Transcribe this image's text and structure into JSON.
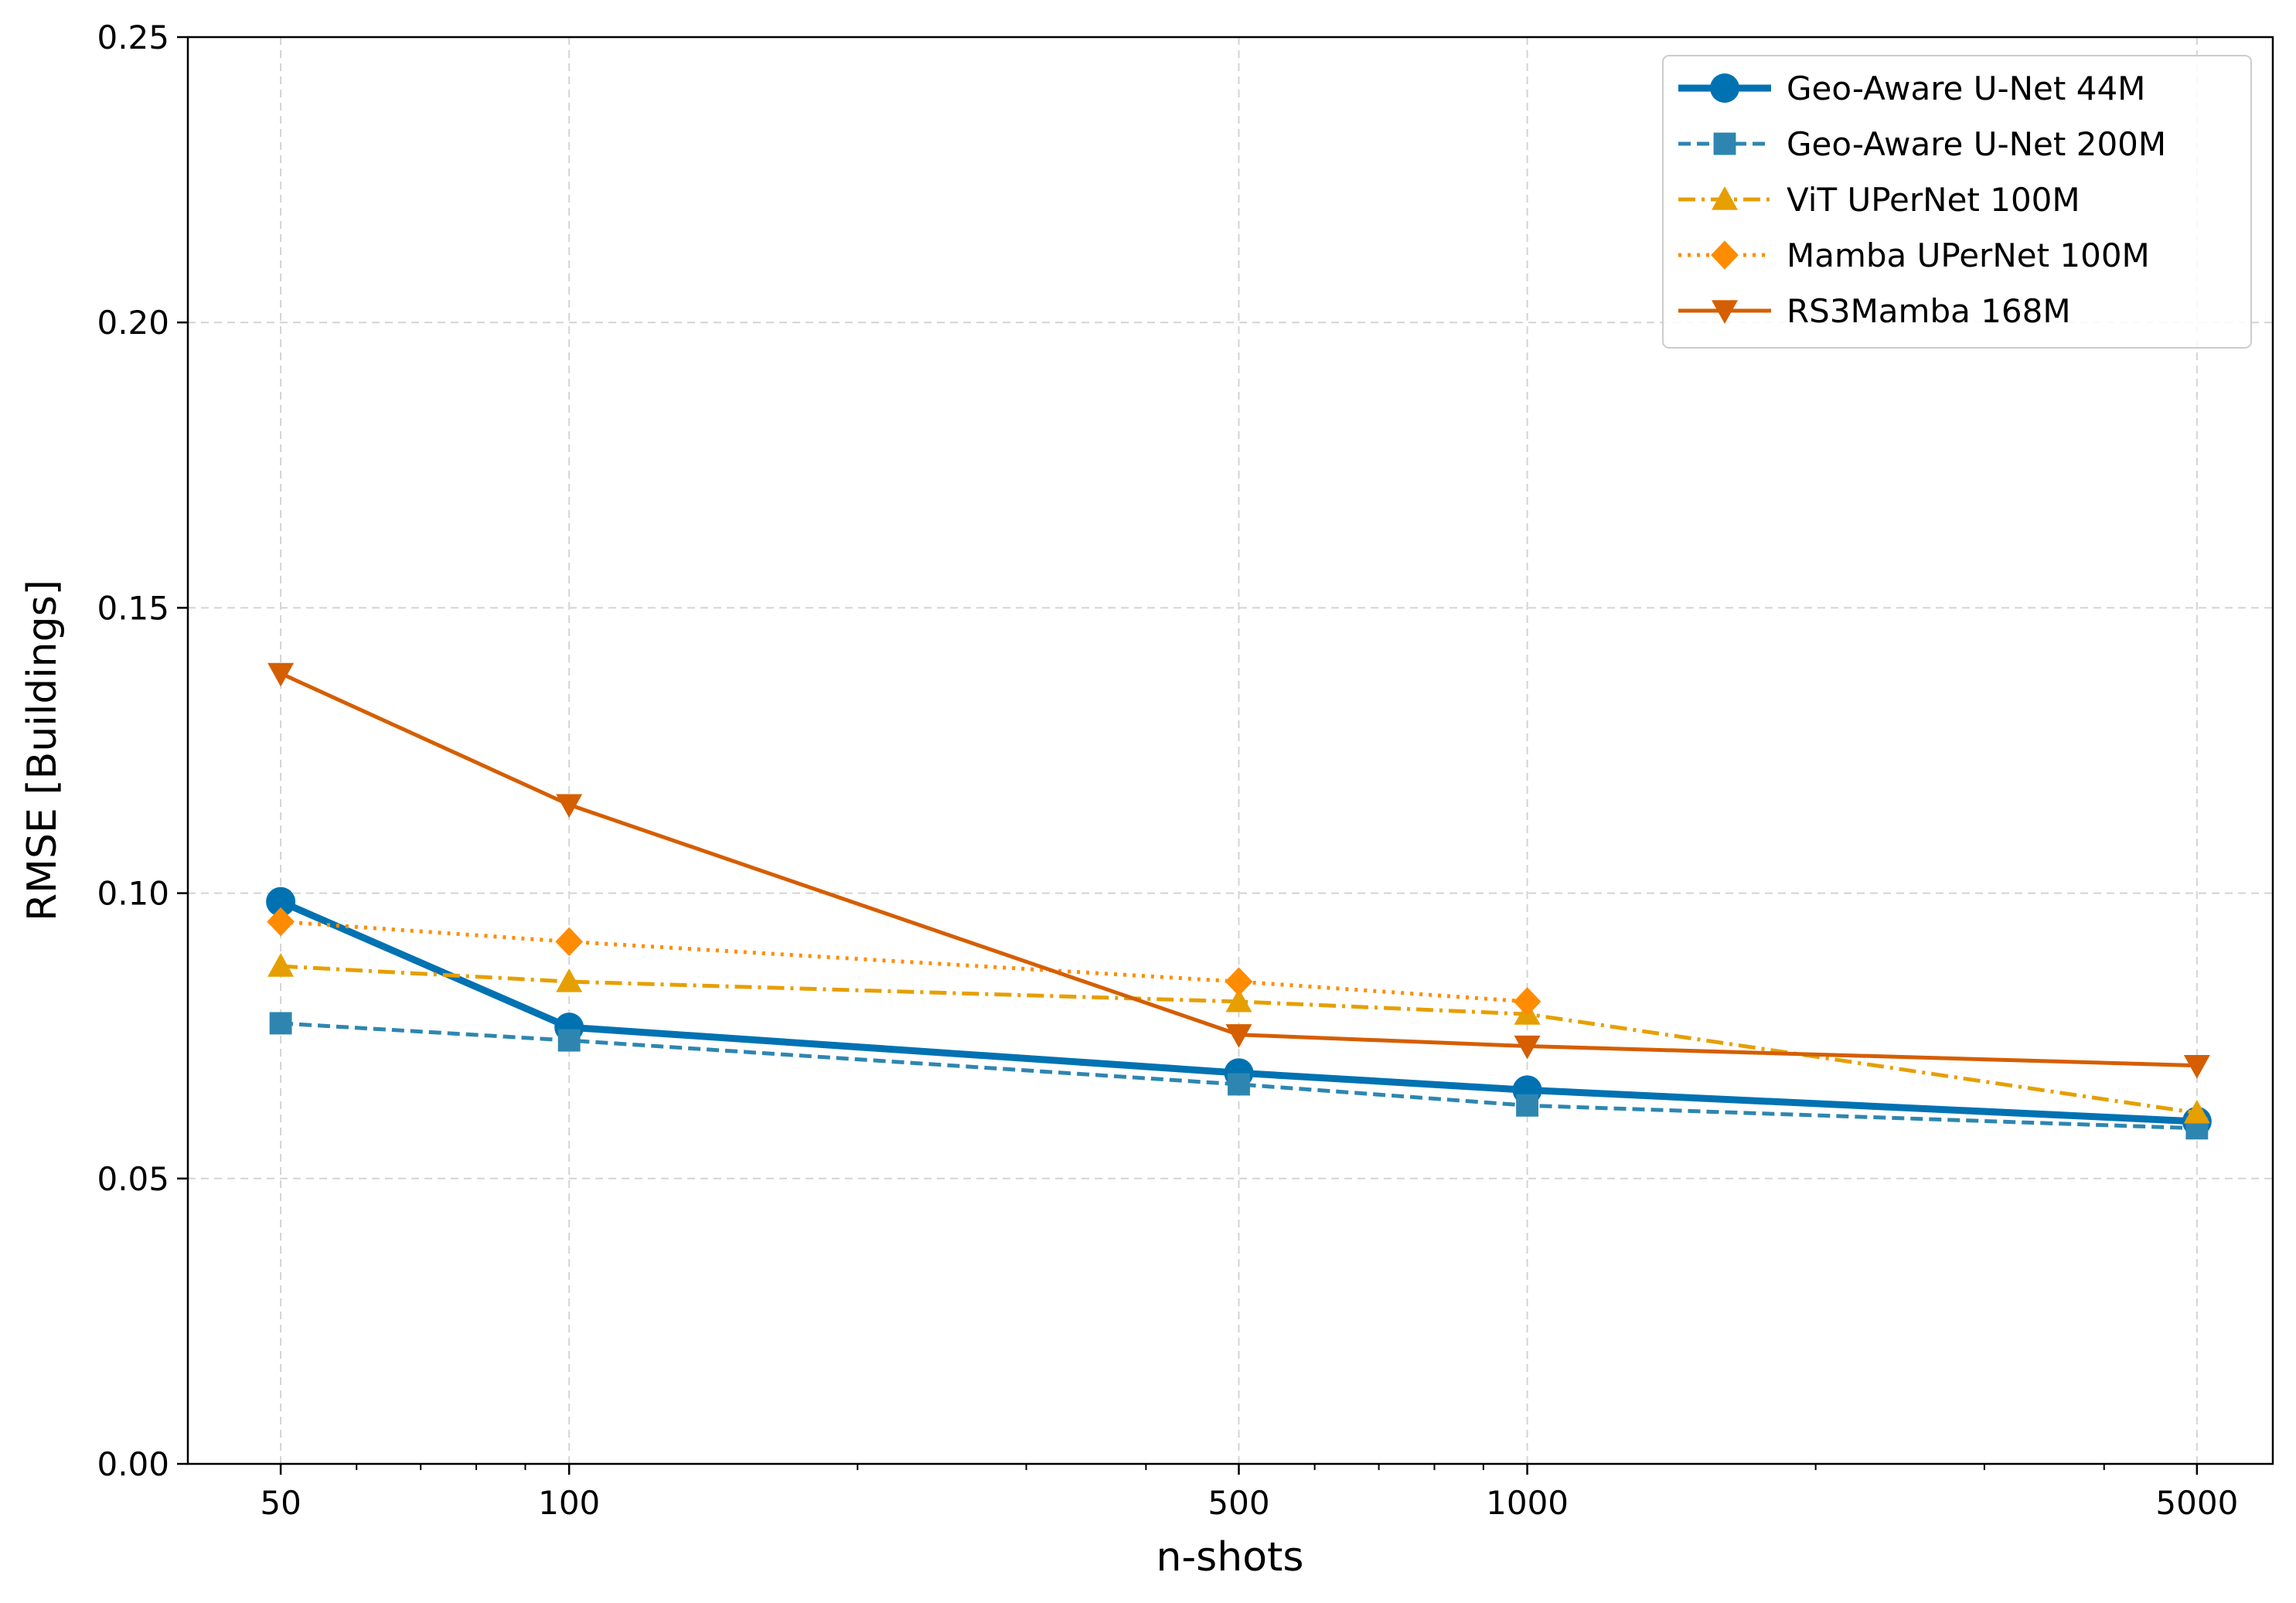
{
  "chart_data": {
    "type": "line",
    "title": "",
    "xlabel": "n-shots",
    "ylabel": "RMSE [Buildings]",
    "xscale": "log",
    "xlim": [
      40,
      6000
    ],
    "ylim": [
      0.0,
      0.25
    ],
    "x": [
      50,
      100,
      500,
      1000,
      5000
    ],
    "xticks": [
      "50",
      "100",
      "500",
      "1000",
      "5000"
    ],
    "yticks": [
      "0.00",
      "0.05",
      "0.10",
      "0.15",
      "0.20",
      "0.25"
    ],
    "grid": true,
    "legend_position": "top-right",
    "series": [
      {
        "name": "Geo-Aware U-Net 44M",
        "values": [
          0.0985,
          0.0765,
          0.0685,
          0.0655,
          0.06
        ],
        "color": "#0072b2",
        "marker": "circle",
        "linestyle": "solid",
        "weight": "thick"
      },
      {
        "name": "Geo-Aware U-Net 200M",
        "values": [
          0.0772,
          0.0742,
          0.0665,
          0.0628,
          0.0588
        ],
        "color": "#2e86b0",
        "marker": "square",
        "linestyle": "dashed",
        "weight": "normal"
      },
      {
        "name": "ViT UPerNet 100M",
        "values": [
          0.0872,
          0.0845,
          0.081,
          0.0788,
          0.0615
        ],
        "color": "#e69f00",
        "marker": "triangle-up",
        "linestyle": "dashdot",
        "weight": "normal"
      },
      {
        "name": "Mamba UPerNet 100M",
        "values": [
          0.095,
          0.0915,
          0.0845,
          0.081,
          null
        ],
        "color": "#ff8c00",
        "marker": "diamond",
        "linestyle": "dotted",
        "weight": "normal"
      },
      {
        "name": "RS3Mamba 168M",
        "values": [
          0.1385,
          0.1155,
          0.0752,
          0.0732,
          0.0698
        ],
        "color": "#d55e00",
        "marker": "triangle-down",
        "linestyle": "solid",
        "weight": "normal"
      }
    ]
  }
}
